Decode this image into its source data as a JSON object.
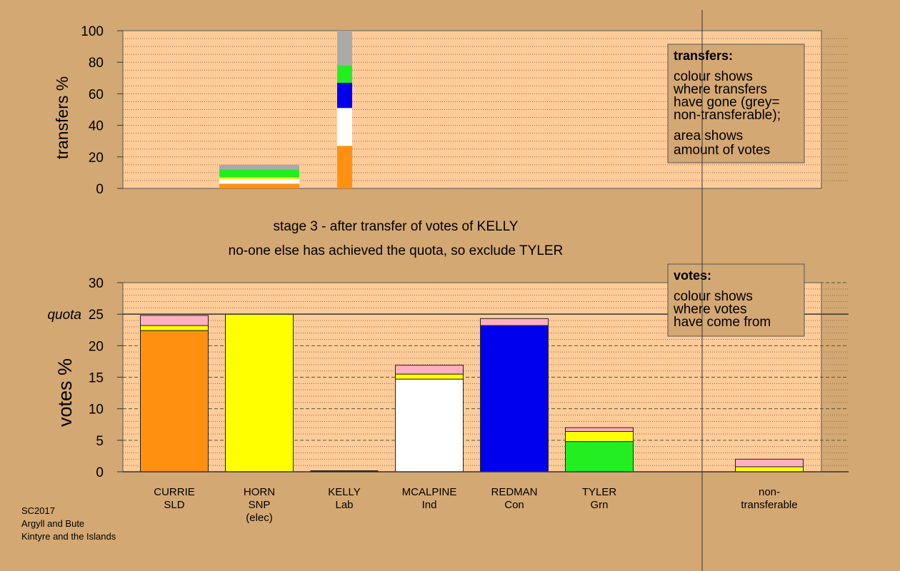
{
  "chart_data": [
    {
      "type": "bar",
      "stacked": true,
      "panel": "transfers",
      "ylabel": "transfers %",
      "ylim": [
        0,
        100
      ],
      "yticks": [
        0,
        20,
        40,
        60,
        80,
        100
      ],
      "grid": "dotted",
      "bars": [
        {
          "candidate": "HORN",
          "segments": [
            {
              "color": "#ff9010",
              "value": 3
            },
            {
              "color": "#ffffff",
              "value": 3
            },
            {
              "color": "#ffff00",
              "value": 1
            },
            {
              "color": "#22ee22",
              "value": 5
            },
            {
              "color": "#aaaaaa",
              "value": 3
            }
          ]
        },
        {
          "candidate": "KELLY",
          "segments": [
            {
              "color": "#ff9010",
              "value": 27
            },
            {
              "color": "#ffffff",
              "value": 24
            },
            {
              "color": "#0000ee",
              "value": 16
            },
            {
              "color": "#22ee22",
              "value": 11
            },
            {
              "color": "#aaaaaa",
              "value": 22
            }
          ]
        }
      ],
      "legend": {
        "title": "transfers:",
        "lines": [
          "colour shows",
          "where transfers",
          "have gone (grey=",
          "non-transferable);"
        ],
        "lines2": [
          "area shows",
          "amount of votes"
        ]
      }
    },
    {
      "type": "bar",
      "stacked": true,
      "panel": "votes",
      "ylabel": "votes %",
      "ylim": [
        0,
        30
      ],
      "yticks": [
        0,
        5,
        10,
        15,
        20,
        25,
        30
      ],
      "quota": 25,
      "quota_label": "quota",
      "grid": "dashed",
      "categories": [
        {
          "name": "CURRIE",
          "party": "SLD",
          "extra": ""
        },
        {
          "name": "HORN",
          "party": "SNP",
          "extra": "(elec)"
        },
        {
          "name": "KELLY",
          "party": "Lab",
          "extra": ""
        },
        {
          "name": "MCALPINE",
          "party": "Ind",
          "extra": ""
        },
        {
          "name": "REDMAN",
          "party": "Con",
          "extra": ""
        },
        {
          "name": "TYLER",
          "party": "Grn",
          "extra": ""
        },
        {
          "name": "",
          "party": "",
          "extra": ""
        },
        {
          "name": "non-",
          "party": "transferable",
          "extra": ""
        }
      ],
      "bars": [
        [
          {
            "color": "#ff9010",
            "value": 22.4
          },
          {
            "color": "#ffff00",
            "value": 0.8
          },
          {
            "color": "#ffb0c0",
            "value": 1.6
          }
        ],
        [
          {
            "color": "#ffff00",
            "value": 25.0
          }
        ],
        [],
        [
          {
            "color": "#ffffff",
            "value": 14.7
          },
          {
            "color": "#ffff00",
            "value": 0.8
          },
          {
            "color": "#ffb0c0",
            "value": 1.4
          }
        ],
        [
          {
            "color": "#0000ee",
            "value": 23.2
          },
          {
            "color": "#ffb0c0",
            "value": 1.1
          }
        ],
        [
          {
            "color": "#22ee22",
            "value": 4.8
          },
          {
            "color": "#ffff00",
            "value": 1.6
          },
          {
            "color": "#ffb0c0",
            "value": 0.6
          }
        ],
        [],
        [
          {
            "color": "#ffff00",
            "value": 0.8
          },
          {
            "color": "#ffb0c0",
            "value": 1.2
          }
        ]
      ],
      "legend": {
        "title": "votes:",
        "lines": [
          "colour shows",
          "where votes",
          "have come from"
        ]
      }
    }
  ],
  "stage_title": "stage 3 - after transfer of votes of KELLY",
  "stage_subtitle": "no-one else has achieved the quota, so exclude TYLER",
  "footer": [
    "SC2017",
    "Argyll and Bute",
    "Kintyre and the Islands"
  ],
  "colors": {
    "background": "#d4a873",
    "plot_area": "#ffcc99"
  }
}
